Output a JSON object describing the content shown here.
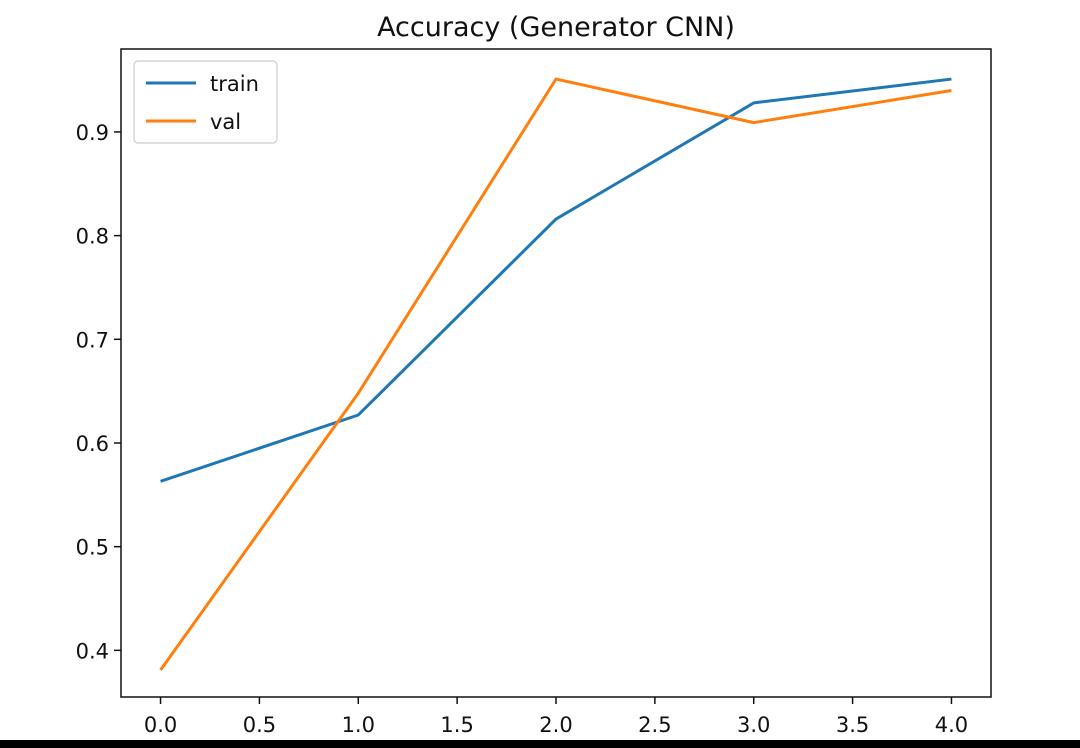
{
  "chart_data": {
    "type": "line",
    "title": "Accuracy (Generator CNN)",
    "xlabel": "",
    "ylabel": "",
    "x": [
      0,
      1,
      2,
      3,
      4
    ],
    "xlim": [
      -0.2,
      4.2
    ],
    "ylim": [
      0.355,
      0.98
    ],
    "xticks": [
      0.0,
      0.5,
      1.0,
      1.5,
      2.0,
      2.5,
      3.0,
      3.5,
      4.0
    ],
    "xtick_labels": [
      "0.0",
      "0.5",
      "1.0",
      "1.5",
      "2.0",
      "2.5",
      "3.0",
      "3.5",
      "4.0"
    ],
    "yticks": [
      0.4,
      0.5,
      0.6,
      0.7,
      0.8,
      0.9
    ],
    "ytick_labels": [
      "0.4",
      "0.5",
      "0.6",
      "0.7",
      "0.8",
      "0.9"
    ],
    "grid": false,
    "legend_position": "upper-left",
    "series": [
      {
        "name": "train",
        "color": "#1f77b4",
        "values": [
          0.563,
          0.627,
          0.816,
          0.928,
          0.951
        ]
      },
      {
        "name": "val",
        "color": "#ff7f0e",
        "values": [
          0.381,
          0.648,
          0.951,
          0.909,
          0.94
        ]
      }
    ]
  }
}
